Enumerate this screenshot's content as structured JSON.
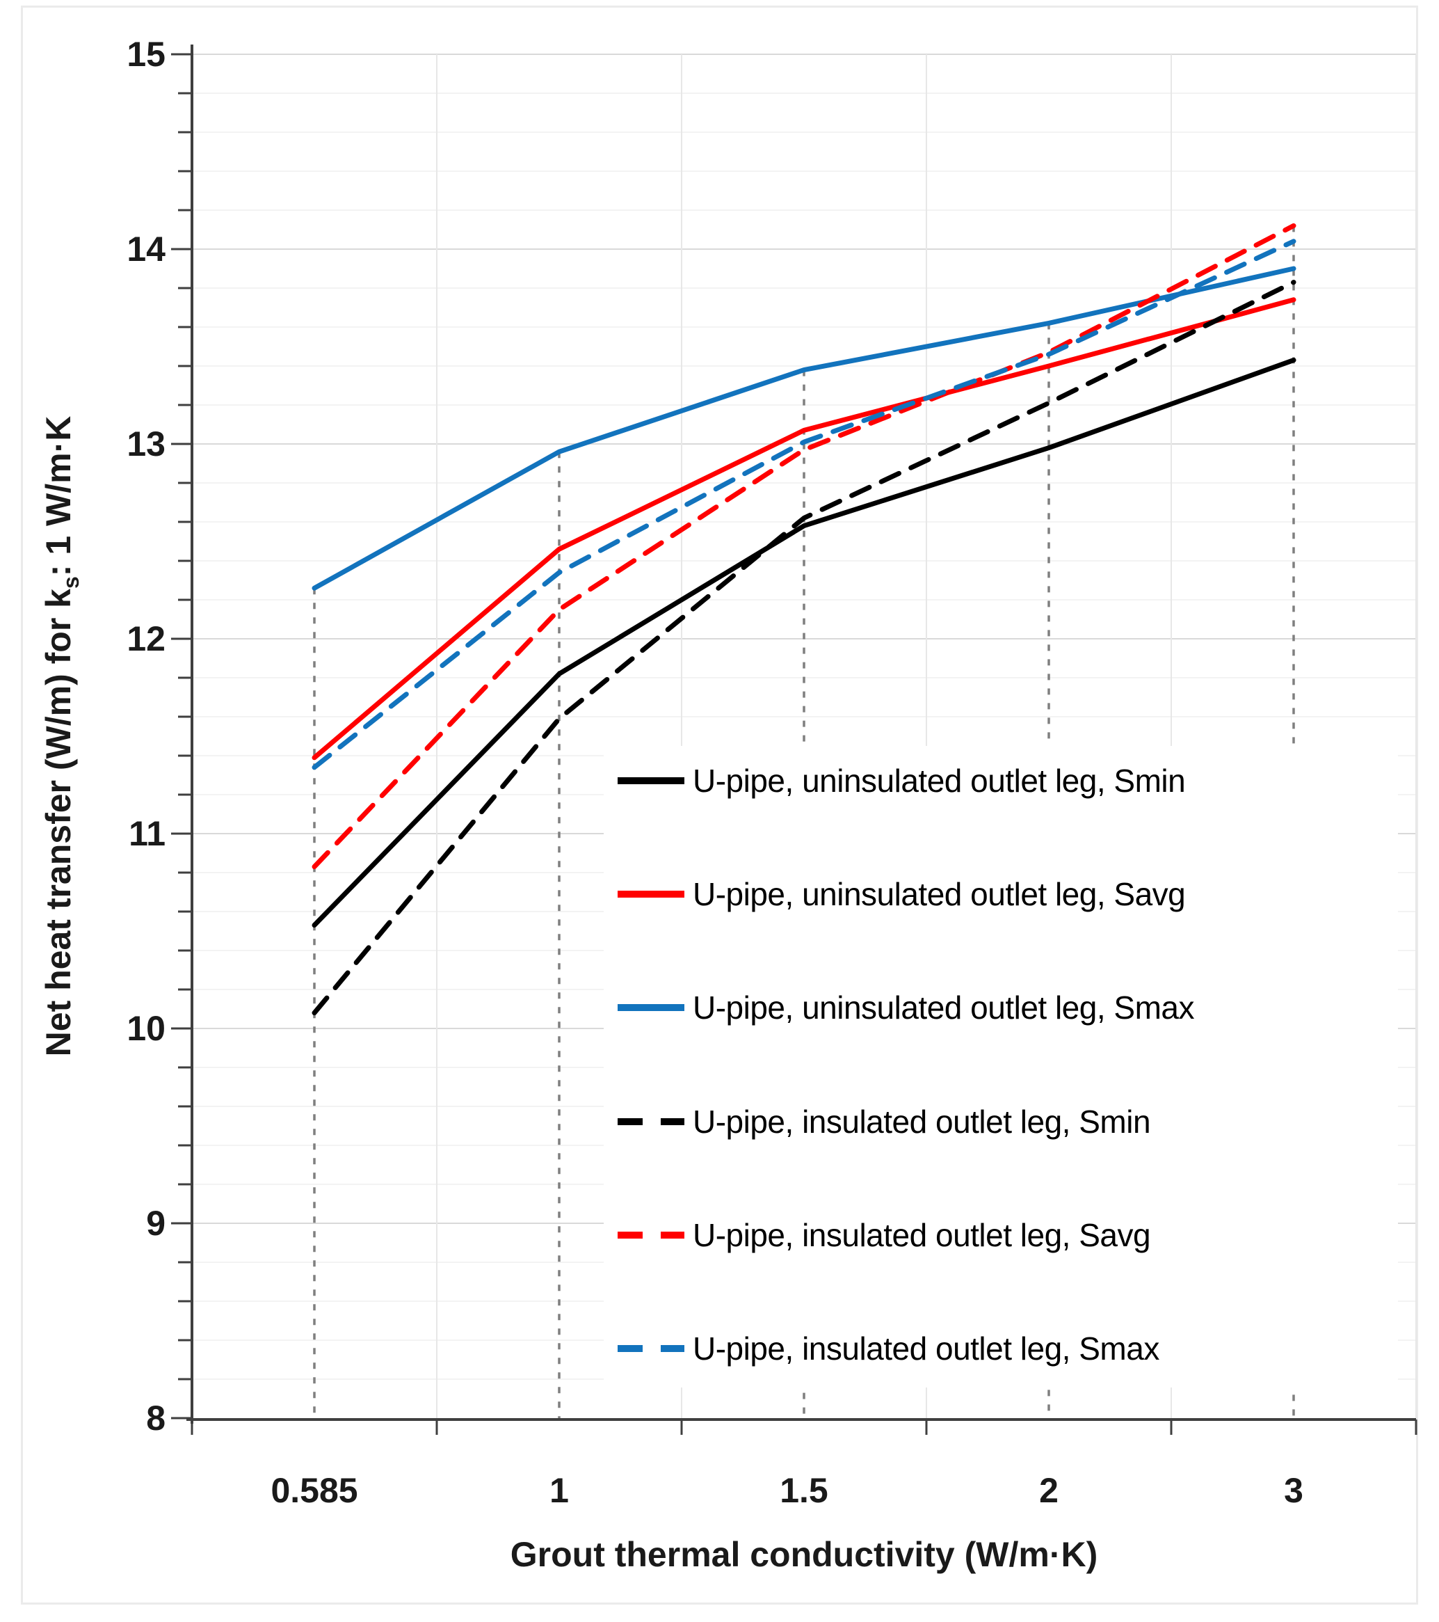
{
  "chart_data": {
    "type": "line",
    "title": "",
    "xlabel": "Grout thermal conductivity (W/m·K)",
    "ylabel_pre": "Net heat transfer (W/m) for k",
    "ylabel_sub": "s",
    "ylabel_post": ": 1 W/m·K",
    "categories": [
      "0.585",
      "1",
      "1.5",
      "2",
      "3"
    ],
    "y_tick_labels": [
      "8",
      "9",
      "10",
      "11",
      "12",
      "13",
      "14",
      "15"
    ],
    "ylim": [
      8,
      15
    ],
    "minor_step": 0.2,
    "grid": "on",
    "legend_position": "inside-right-middle",
    "drop_lines": true,
    "series": [
      {
        "name": "U-pipe, uninsulated outlet leg, Smin",
        "color": "#000000",
        "dash": "solid",
        "values": [
          10.53,
          11.82,
          12.58,
          12.98,
          13.43
        ]
      },
      {
        "name": "U-pipe, uninsulated outlet leg, Savg",
        "color": "#ff0000",
        "dash": "solid",
        "values": [
          11.39,
          12.46,
          13.07,
          13.4,
          13.74
        ]
      },
      {
        "name": "U-pipe, uninsulated outlet leg, Smax",
        "color": "#1273bd",
        "dash": "solid",
        "values": [
          12.26,
          12.96,
          13.38,
          13.62,
          13.9
        ]
      },
      {
        "name": "U-pipe, insulated outlet leg, Smin",
        "color": "#000000",
        "dash": "dashed",
        "values": [
          10.08,
          11.59,
          12.62,
          13.21,
          13.83
        ]
      },
      {
        "name": "U-pipe, insulated outlet leg, Savg",
        "color": "#ff0000",
        "dash": "dashed",
        "values": [
          10.83,
          12.15,
          12.97,
          13.47,
          14.12
        ]
      },
      {
        "name": "U-pipe, insulated outlet leg, Smax",
        "color": "#1273bd",
        "dash": "dashed",
        "values": [
          11.34,
          12.34,
          13.01,
          13.46,
          14.04
        ]
      }
    ],
    "colors": {
      "axis": "#3f3f3f",
      "tick": "#3f3f3f",
      "grid_minor": "#f3f3f3",
      "grid_major": "#d9d9d9",
      "grid_vertical": "#e7e7e7",
      "drop_line": "#7f7f7f",
      "frame": "#ebebeb",
      "text": "#1a1a1a",
      "background": "#ffffff"
    }
  }
}
